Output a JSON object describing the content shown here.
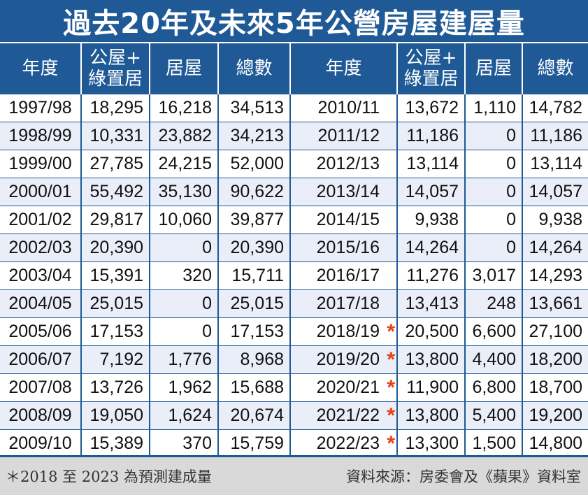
{
  "title": "過去20年及未來5年公營房屋建屋量",
  "headers": {
    "year": "年度",
    "public_line1": "公屋+",
    "public_line2": "綠置居",
    "hos": "居屋",
    "total": "總數"
  },
  "rows": [
    {
      "l": [
        "1997/98",
        "18,295",
        "16,218",
        "34,513"
      ],
      "r": [
        "2010/11",
        "13,672",
        "1,110",
        "14,782"
      ],
      "star": ""
    },
    {
      "l": [
        "1998/99",
        "10,331",
        "23,882",
        "34,213"
      ],
      "r": [
        "2011/12",
        "11,186",
        "0",
        "11,186"
      ],
      "star": ""
    },
    {
      "l": [
        "1999/00",
        "27,785",
        "24,215",
        "52,000"
      ],
      "r": [
        "2012/13",
        "13,114",
        "0",
        "13,114"
      ],
      "star": ""
    },
    {
      "l": [
        "2000/01",
        "55,492",
        "35,130",
        "90,622"
      ],
      "r": [
        "2013/14",
        "14,057",
        "0",
        "14,057"
      ],
      "star": ""
    },
    {
      "l": [
        "2001/02",
        "29,817",
        "10,060",
        "39,877"
      ],
      "r": [
        "2014/15",
        "9,938",
        "0",
        "9,938"
      ],
      "star": ""
    },
    {
      "l": [
        "2002/03",
        "20,390",
        "0",
        "20,390"
      ],
      "r": [
        "2015/16",
        "14,264",
        "0",
        "14,264"
      ],
      "star": ""
    },
    {
      "l": [
        "2003/04",
        "15,391",
        "320",
        "15,711"
      ],
      "r": [
        "2016/17",
        "11,276",
        "3,017",
        "14,293"
      ],
      "star": ""
    },
    {
      "l": [
        "2004/05",
        "25,015",
        "0",
        "25,015"
      ],
      "r": [
        "2017/18",
        "13,413",
        "248",
        "13,661"
      ],
      "star": ""
    },
    {
      "l": [
        "2005/06",
        "17,153",
        "0",
        "17,153"
      ],
      "r": [
        "2018/19",
        "20,500",
        "6,600",
        "27,100"
      ],
      "star": "*"
    },
    {
      "l": [
        "2006/07",
        "7,192",
        "1,776",
        "8,968"
      ],
      "r": [
        "2019/20",
        "13,800",
        "4,400",
        "18,200"
      ],
      "star": "*"
    },
    {
      "l": [
        "2007/08",
        "13,726",
        "1,962",
        "15,688"
      ],
      "r": [
        "2020/21",
        "11,900",
        "6,800",
        "18,700"
      ],
      "star": "*"
    },
    {
      "l": [
        "2008/09",
        "19,050",
        "1,624",
        "20,674"
      ],
      "r": [
        "2021/22",
        "13,800",
        "5,400",
        "19,200"
      ],
      "star": "*"
    },
    {
      "l": [
        "2009/10",
        "15,389",
        "370",
        "15,759"
      ],
      "r": [
        "2022/23",
        "13,300",
        "1,500",
        "14,800"
      ],
      "star": "*"
    }
  ],
  "footer": {
    "note": "＊2018 至 2023 為預測建成量",
    "source": "資料來源：房委會及《蘋果》資料室"
  },
  "colors": {
    "header_blue": "#1f5a96",
    "star_red": "#e8421a",
    "stripe": "#e9eef8"
  }
}
